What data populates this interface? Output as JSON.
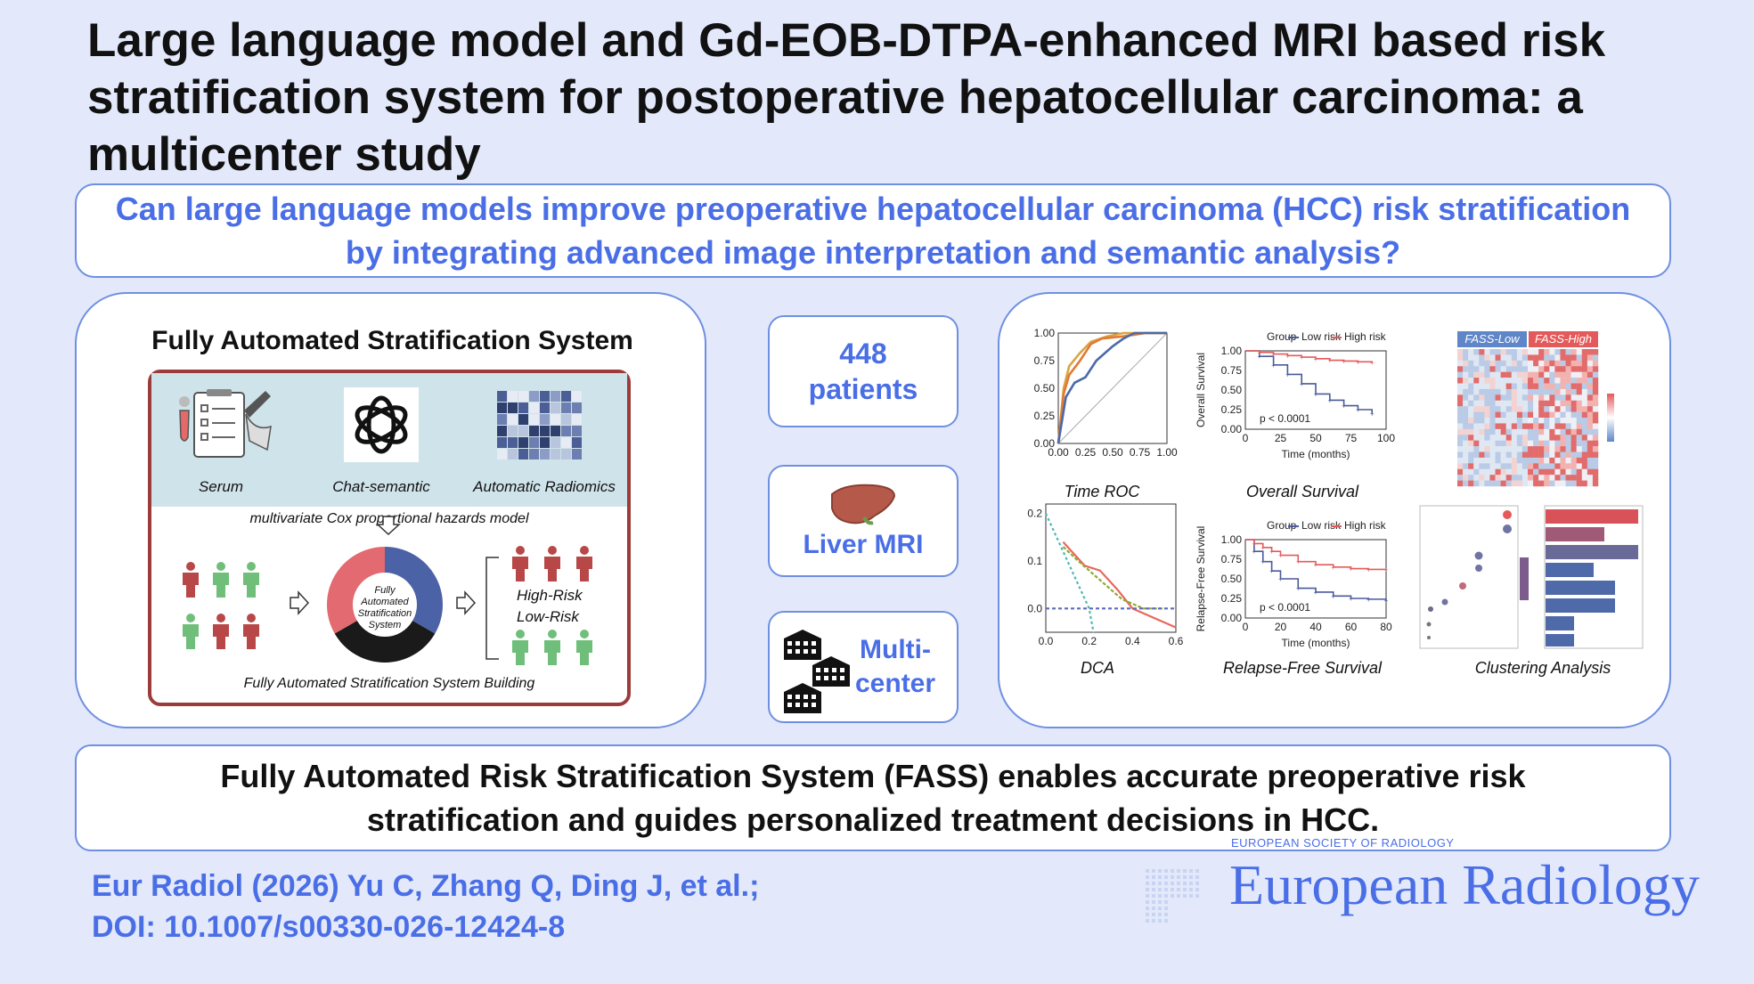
{
  "title": "Large language model and Gd-EOB-DTPA-enhanced MRI based risk stratification system for postoperative hepatocellular carcinoma: a multicenter study",
  "question": "Can large language models improve preoperative hepatocellular carcinoma (HCC) risk stratification by integrating advanced image interpretation and semantic analysis?",
  "left_panel": {
    "title": "Fully Automated Stratification System",
    "inputs": [
      "Serum",
      "Chat-semantic",
      "Automatic Radiomics"
    ],
    "model_label": "multivariate Cox proportional hazards model",
    "center_label": "Fully Automated Stratification System",
    "high_risk": "High-Risk",
    "low_risk": "Low-Risk",
    "footer": "Fully Automated Stratification System Building"
  },
  "stats": {
    "patients": {
      "value": "448",
      "label": "patients"
    },
    "mri": {
      "label": "Liver MRI",
      "icon": "liver-icon"
    },
    "center": {
      "label_line1": "Multi-",
      "label_line2": "center",
      "icon": "hospital-icon"
    }
  },
  "colors": {
    "accent": "#4a6ee6",
    "low_risk": "#4a5a9a",
    "high_risk": "#e45a5a",
    "patient_green": "#6fbf7a",
    "patient_red": "#b84848"
  },
  "right_panel": {
    "captions": {
      "roc": "Time ROC",
      "os": "Overall Survival",
      "heatmap": "",
      "dca": "DCA",
      "rfs": "Relapse-Free Survival",
      "cluster": "Clustering Analysis"
    },
    "heatmap_labels": {
      "low": "FASS-Low",
      "high": "FASS-High"
    },
    "km_legend": {
      "group": "Group",
      "low": "Low risk",
      "high": "High risk"
    },
    "os_ylabel": "Overall Survival",
    "rfs_ylabel": "Relapse-Free Survival",
    "xlabel": "Time (months)",
    "os_p": "p < 0.0001",
    "rfs_p": "p < 0.0001"
  },
  "chart_data": [
    {
      "type": "line",
      "title": "Time ROC",
      "xlim": [
        0,
        1
      ],
      "ylim": [
        0,
        1
      ],
      "x_ticks": [
        "0.00",
        "0.25",
        "0.50",
        "0.75",
        "1.00"
      ],
      "y_ticks": [
        "0.00",
        "0.25",
        "0.50",
        "0.75",
        "1.00"
      ],
      "series": [
        {
          "color": "#d9a441",
          "x": [
            0,
            0.05,
            0.1,
            0.2,
            0.3,
            0.45,
            0.6,
            0.75,
            1
          ],
          "y": [
            0,
            0.5,
            0.7,
            0.82,
            0.92,
            0.97,
            1,
            1,
            1
          ]
        },
        {
          "color": "#e07a35",
          "x": [
            0,
            0.05,
            0.1,
            0.2,
            0.3,
            0.4,
            0.6,
            0.8,
            1
          ],
          "y": [
            0,
            0.45,
            0.62,
            0.75,
            0.9,
            0.95,
            0.97,
            1,
            1
          ]
        },
        {
          "color": "#4a6aa8",
          "x": [
            0,
            0.07,
            0.15,
            0.25,
            0.35,
            0.5,
            0.6,
            0.7,
            1
          ],
          "y": [
            0,
            0.42,
            0.55,
            0.6,
            0.75,
            0.88,
            0.95,
            1,
            1
          ]
        }
      ]
    },
    {
      "type": "line",
      "title": "Overall Survival",
      "xlim": [
        0,
        100
      ],
      "ylim": [
        0,
        1
      ],
      "x_ticks": [
        "0",
        "25",
        "50",
        "75",
        "100"
      ],
      "y_ticks": [
        "0.00",
        "0.25",
        "0.50",
        "0.75",
        "1.00"
      ],
      "series": [
        {
          "name": "Low risk",
          "color": "#4a5a9a",
          "x": [
            0,
            10,
            20,
            30,
            40,
            50,
            60,
            70,
            80,
            90
          ],
          "y": [
            1,
            0.93,
            0.82,
            0.7,
            0.58,
            0.45,
            0.37,
            0.3,
            0.25,
            0.2
          ]
        },
        {
          "name": "High risk",
          "color": "#e45a5a",
          "x": [
            0,
            10,
            20,
            30,
            40,
            50,
            60,
            70,
            80,
            90
          ],
          "y": [
            1,
            0.98,
            0.96,
            0.94,
            0.92,
            0.9,
            0.88,
            0.87,
            0.86,
            0.85
          ]
        }
      ]
    },
    {
      "type": "line",
      "title": "DCA",
      "xlim": [
        0,
        0.6
      ],
      "ylim": [
        -0.05,
        0.22
      ],
      "x_ticks": [
        "0.0",
        "0.2",
        "0.4",
        "0.6"
      ],
      "y_ticks": [
        "0.0",
        "0.1",
        "0.2"
      ],
      "series": [
        {
          "color": "#e8675e",
          "x": [
            0.08,
            0.12,
            0.18,
            0.25,
            0.33,
            0.4,
            0.5,
            0.6
          ],
          "y": [
            0.14,
            0.12,
            0.09,
            0.08,
            0.04,
            0.0,
            -0.02,
            -0.04
          ]
        },
        {
          "color": "#8faa36",
          "x": [
            0.08,
            0.15,
            0.25,
            0.35,
            0.45,
            0.55
          ],
          "y": [
            0.13,
            0.1,
            0.06,
            0.02,
            0.0,
            0.0
          ]
        },
        {
          "color": "#4fb7b2",
          "x": [
            0.0,
            0.1,
            0.2,
            0.22
          ],
          "y": [
            0.2,
            0.1,
            0.0,
            -0.05
          ]
        },
        {
          "color": "#5d6ab8",
          "x": [
            0.0,
            0.6
          ],
          "y": [
            0.0,
            0.0
          ]
        }
      ]
    },
    {
      "type": "line",
      "title": "Relapse-Free Survival",
      "xlim": [
        0,
        80
      ],
      "ylim": [
        0,
        1
      ],
      "x_ticks": [
        "0",
        "20",
        "40",
        "60",
        "80"
      ],
      "y_ticks": [
        "0.00",
        "0.25",
        "0.50",
        "0.75",
        "1.00"
      ],
      "series": [
        {
          "name": "Low risk",
          "color": "#4a5a9a",
          "x": [
            0,
            5,
            10,
            15,
            20,
            30,
            40,
            50,
            60,
            70,
            80
          ],
          "y": [
            1,
            0.85,
            0.72,
            0.6,
            0.5,
            0.38,
            0.33,
            0.28,
            0.25,
            0.24,
            0.22
          ]
        },
        {
          "name": "High risk",
          "color": "#e45a5a",
          "x": [
            0,
            5,
            10,
            15,
            20,
            30,
            40,
            50,
            60,
            70,
            80
          ],
          "y": [
            1,
            0.95,
            0.9,
            0.85,
            0.8,
            0.72,
            0.68,
            0.65,
            0.63,
            0.62,
            0.62
          ]
        }
      ]
    }
  ],
  "conclusion": "Fully Automated Risk Stratification System (FASS) enables accurate preoperative risk stratification and guides personalized treatment decisions in HCC.",
  "citation_line1": "Eur Radiol (2026) Yu C, Zhang Q, Ding J, et al.;",
  "citation_line2": "DOI: 10.1007/s00330-026-12424-8",
  "journal_org": "EUROPEAN SOCIETY OF RADIOLOGY",
  "journal_name": "European Radiology"
}
